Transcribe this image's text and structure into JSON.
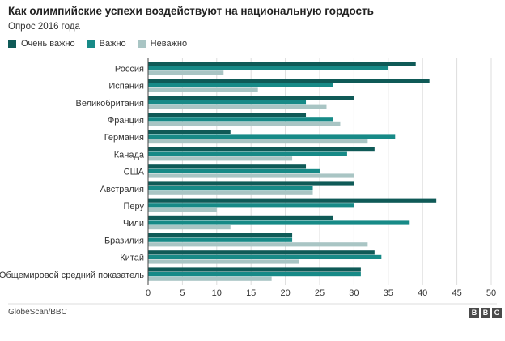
{
  "title": "Как олимпийские успехи воздействуют на национальную гордость",
  "subtitle": "Опрос 2016 года",
  "source": "GlobeScan/BBC",
  "logo_letters": [
    "B",
    "B",
    "C"
  ],
  "colors": {
    "very_important": "#0f5a57",
    "important": "#178a87",
    "not_important": "#a9c5c4",
    "grid": "#dddddd",
    "axis": "#444444"
  },
  "chart_data": {
    "type": "bar",
    "orientation": "horizontal",
    "title": "Как олимпийские успехи воздействуют на национальную гордость",
    "subtitle": "Опрос 2016 года",
    "xlim": [
      0,
      50
    ],
    "xticks": [
      0,
      5,
      10,
      15,
      20,
      25,
      30,
      35,
      40,
      45,
      50
    ],
    "grid": true,
    "legend_position": "top-left",
    "categories": [
      "Россия",
      "Испания",
      "Великобритания",
      "Франция",
      "Германия",
      "Канада",
      "США",
      "Австралия",
      "Перу",
      "Чили",
      "Бразилия",
      "Китай",
      "Общемировой средний показатель"
    ],
    "series": [
      {
        "name": "Очень важно",
        "values": [
          39,
          41,
          30,
          23,
          12,
          33,
          23,
          30,
          42,
          27,
          21,
          33,
          31
        ]
      },
      {
        "name": "Важно",
        "values": [
          35,
          27,
          23,
          27,
          36,
          29,
          25,
          24,
          30,
          38,
          21,
          34,
          31
        ]
      },
      {
        "name": "Неважно",
        "values": [
          11,
          16,
          26,
          28,
          32,
          21,
          30,
          24,
          10,
          12,
          32,
          22,
          18
        ]
      }
    ]
  }
}
